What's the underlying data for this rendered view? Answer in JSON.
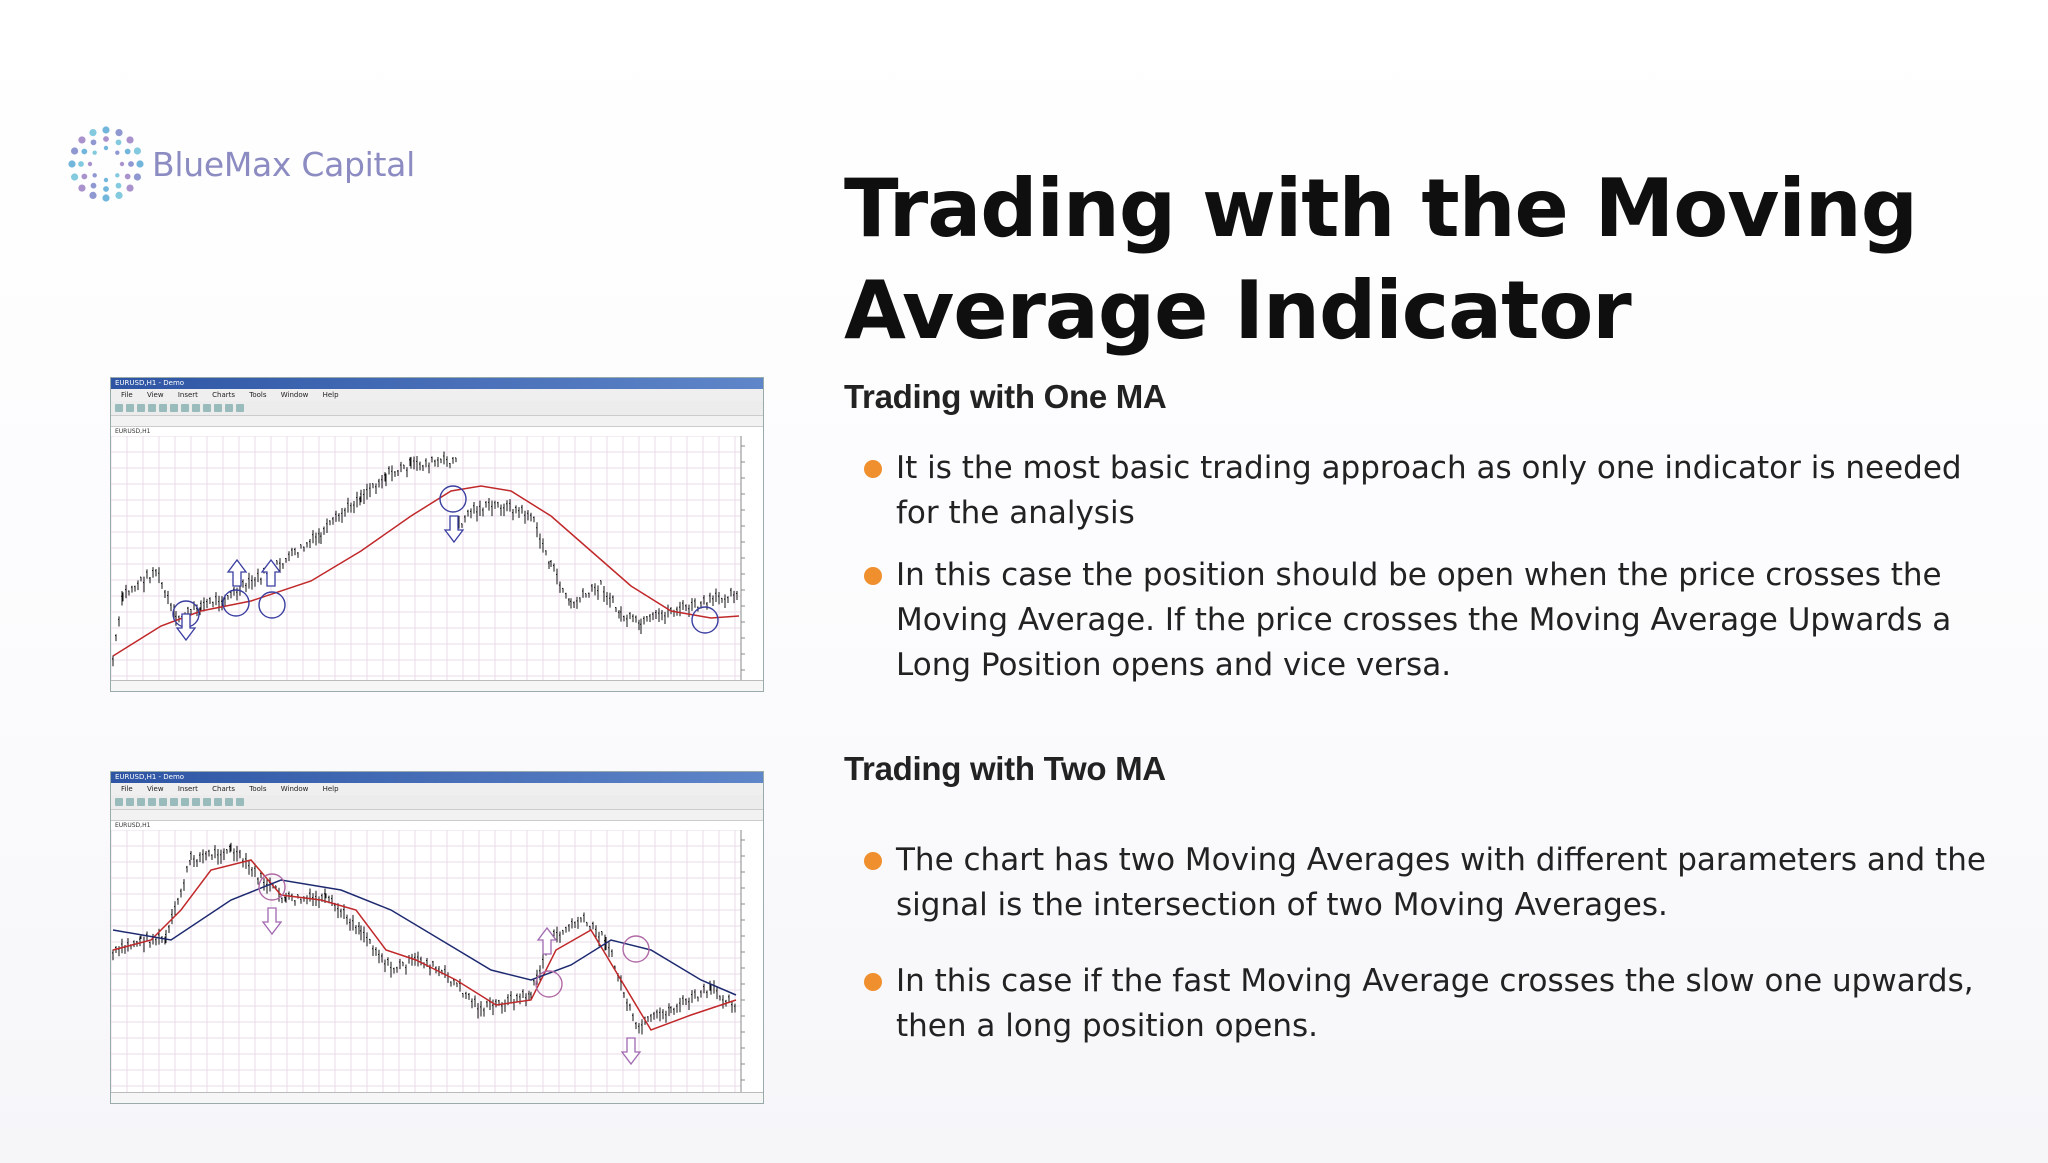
{
  "logo": {
    "text": "BlueMax Capital",
    "icon": "dotted-circle-icon"
  },
  "title": "Trading with the Moving Average Indicator",
  "sections": [
    {
      "heading": "Trading with One MA",
      "bullets": [
        "It is the most basic trading approach as only one indicator is needed for the analysis",
        "In this case the position should be open when the price crosses the Moving Average. If the price crosses the Moving Average Upwards a Long Position opens and vice versa."
      ]
    },
    {
      "heading": "Trading with Two MA",
      "bullets": [
        "The chart has two Moving Averages with different parameters and the signal is the intersection of two Moving Averages.",
        "In this case if the fast Moving Average crosses the slow one upwards, then a long position opens."
      ]
    }
  ],
  "colors": {
    "bullet": "#ef8f2e",
    "logo": "#8c8cc2",
    "ma_fast": "#c0282a",
    "ma_slow": "#1e2a70",
    "marker": "#3a3ea0"
  },
  "screenshots": [
    {
      "window_title": "EURUSD,H1 - Demo",
      "menu": [
        "File",
        "View",
        "Insert",
        "Charts",
        "Tools",
        "Window",
        "Help"
      ],
      "symbol": "EURUSD,H1"
    },
    {
      "window_title": "EURUSD,H1 - Demo",
      "menu": [
        "File",
        "View",
        "Insert",
        "Charts",
        "Tools",
        "Window",
        "Help"
      ],
      "symbol": "EURUSD,H1"
    }
  ]
}
